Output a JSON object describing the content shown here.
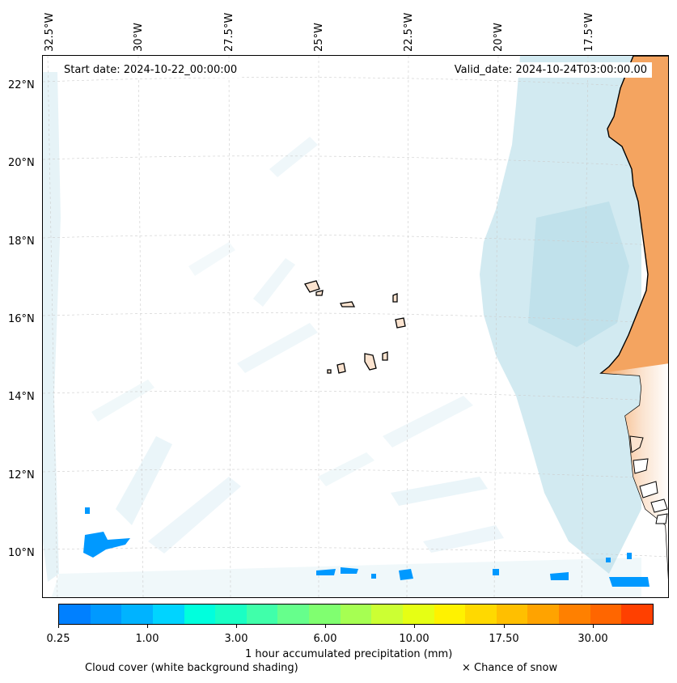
{
  "map": {
    "start_date": "Start date: 2024-10-22_00:00:00",
    "valid_date": "Valid_date: 2024-10-24T03:00:00.00",
    "lon_labels": [
      "32.5°W",
      "30°W",
      "27.5°W",
      "25°W",
      "22.5°W",
      "20°W",
      "17.5°W"
    ],
    "lat_labels": [
      "22°N",
      "20°N",
      "18°N",
      "16°N",
      "14°N",
      "12°N",
      "10°N"
    ],
    "land_color": "#f4a460",
    "coast_color": "#000000",
    "cloud_color": "#add8e6"
  },
  "colorbar": {
    "label": "1 hour accumulated precipitation (mm)",
    "tick_labels": [
      "0.25",
      "1.00",
      "3.00",
      "6.00",
      "10.00",
      "17.50",
      "30.00"
    ],
    "colors": [
      "#0080ff",
      "#0099ff",
      "#00b3ff",
      "#00d4ff",
      "#00ffdd",
      "#1affc4",
      "#40ffaa",
      "#66ff8c",
      "#80ff70",
      "#a6ff52",
      "#ccff33",
      "#e6ff14",
      "#fff200",
      "#ffd900",
      "#ffbf00",
      "#ffa300",
      "#ff8000",
      "#ff6600",
      "#ff4000"
    ]
  },
  "legend": {
    "cloud_cover": "Cloud cover (white background shading)",
    "snow": "× Chance of snow"
  }
}
